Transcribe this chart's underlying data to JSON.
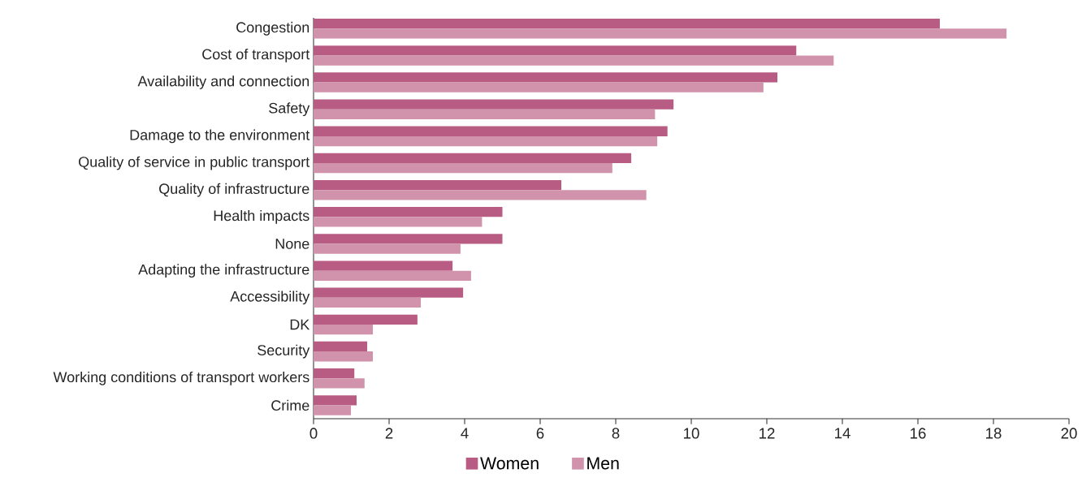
{
  "chart_data": {
    "type": "bar",
    "orientation": "horizontal",
    "categories": [
      "Congestion",
      "Cost of transport",
      "Availability and connection",
      "Safety",
      "Damage to the environment",
      "Quality of service in public transport",
      "Quality of infrastructure",
      "Health impacts",
      "None",
      "Adapting the infrastructure",
      "Accessibility",
      "DK",
      "Security",
      "Working conditions of transport workers",
      "Crime"
    ],
    "series": [
      {
        "name": "Women",
        "color": "#b85c84",
        "values": [
          16.58,
          12.78,
          12.28,
          9.53,
          9.37,
          8.41,
          6.56,
          5.0,
          5.0,
          3.68,
          3.96,
          2.75,
          1.42,
          1.08,
          1.14
        ]
      },
      {
        "name": "Men",
        "color": "#d093ab",
        "values": [
          18.35,
          13.77,
          11.91,
          9.04,
          9.1,
          7.91,
          8.81,
          4.46,
          3.89,
          4.17,
          2.84,
          1.57,
          1.57,
          1.35,
          0.99
        ]
      }
    ],
    "xlim": [
      0,
      20
    ],
    "xticks": [
      0,
      2,
      4,
      6,
      8,
      10,
      12,
      14,
      16,
      18,
      20
    ],
    "grid": false,
    "legend": "bottom"
  }
}
